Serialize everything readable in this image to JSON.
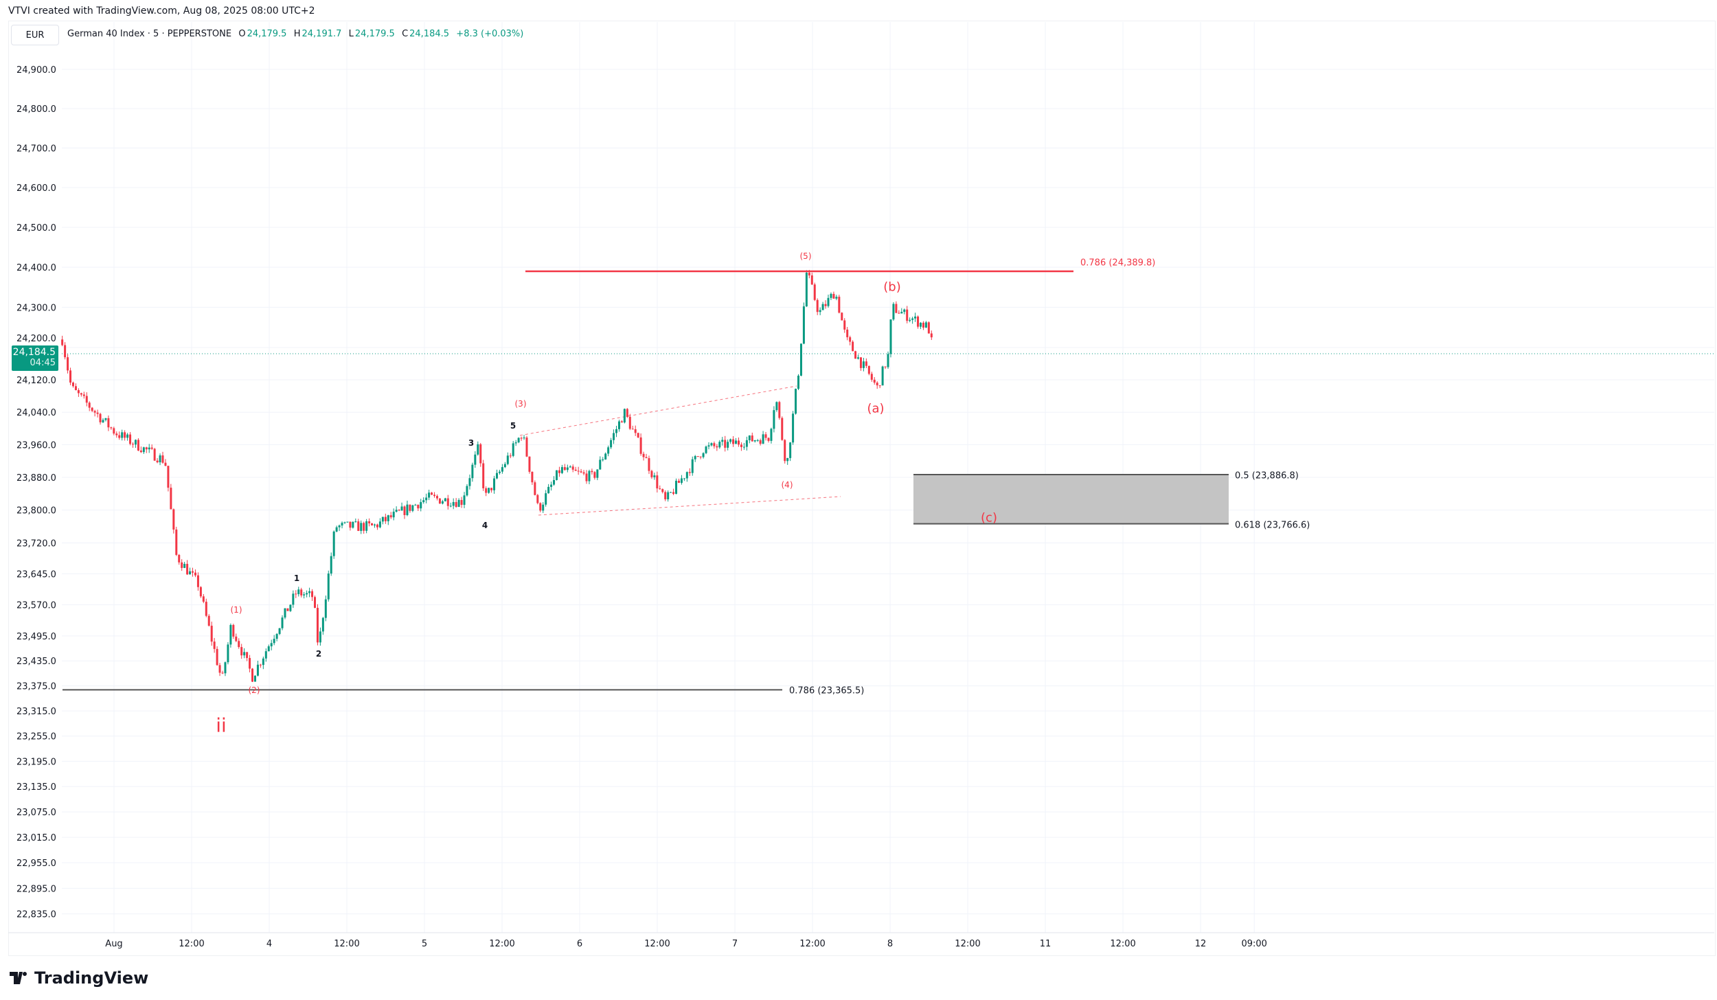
{
  "attribution": "VTVI created with TradingView.com, Aug 08, 2025 08:00 UTC+2",
  "currency": "EUR",
  "legend": {
    "symbol": "German 40 Index · 5 · PEPPERSTONE",
    "open_label": "O",
    "open": "24,179.5",
    "high_label": "H",
    "high": "24,191.7",
    "low_label": "L",
    "low": "24,179.5",
    "close_label": "C",
    "close": "24,184.5",
    "change": "+8.3 (+0.03%)"
  },
  "last_price": {
    "value": "24,184.5",
    "countdown": "04:45"
  },
  "logo_text": "TradingView",
  "colors": {
    "up": "#089981",
    "down": "#f23645",
    "fib_red": "#f23645",
    "fib_gray": "#787b86",
    "zone": "#c4c4c4"
  },
  "chart_data": {
    "type": "candlestick",
    "title": "German 40 Index · 5 · PEPPERSTONE",
    "scale": "log",
    "ylim": [
      22835,
      24900
    ],
    "y_ticks": [
      "24,900.0",
      "24,800.0",
      "24,700.0",
      "24,600.0",
      "24,500.0",
      "24,400.0",
      "24,300.0",
      "24,200.0",
      "24,120.0",
      "24,040.0",
      "23,960.0",
      "23,880.0",
      "23,800.0",
      "23,720.0",
      "23,645.0",
      "23,570.0",
      "23,495.0",
      "23,435.0",
      "23,375.0",
      "23,315.0",
      "23,255.0",
      "23,195.0",
      "23,135.0",
      "23,075.0",
      "23,015.0",
      "22,955.0",
      "22,895.0",
      "22,835.0"
    ],
    "x_ticks": [
      {
        "label": "Aug",
        "t": 0
      },
      {
        "label": "12:00",
        "t": 12
      },
      {
        "label": "4",
        "t": 24
      },
      {
        "label": "12:00",
        "t": 36
      },
      {
        "label": "5",
        "t": 48
      },
      {
        "label": "12:00",
        "t": 60
      },
      {
        "label": "6",
        "t": 72
      },
      {
        "label": "12:00",
        "t": 84
      },
      {
        "label": "7",
        "t": 96
      },
      {
        "label": "12:00",
        "t": 108
      },
      {
        "label": "8",
        "t": 120
      },
      {
        "label": "12:00",
        "t": 132
      },
      {
        "label": "11",
        "t": 144
      },
      {
        "label": "12:00",
        "t": 156
      },
      {
        "label": "12",
        "t": 168
      },
      {
        "label": "09:00",
        "t": 176.3
      }
    ],
    "x_units": "trading hours since Aug 1 00:00",
    "price_path": [
      [
        -8.0,
        24220
      ],
      [
        -6.6,
        24100
      ],
      [
        0.2,
        23990
      ],
      [
        7.9,
        23920
      ],
      [
        9.6,
        23690
      ],
      [
        13.0,
        23620
      ],
      [
        16.7,
        23385
      ],
      [
        18.1,
        23520
      ],
      [
        21.4,
        23398
      ],
      [
        28.2,
        23600
      ],
      [
        30.8,
        23590
      ],
      [
        31.6,
        23465
      ],
      [
        34.2,
        23760
      ],
      [
        40.1,
        23760
      ],
      [
        48.6,
        23830
      ],
      [
        53.7,
        23820
      ],
      [
        56.3,
        23950
      ],
      [
        57.4,
        23830
      ],
      [
        63.1,
        23990
      ],
      [
        65.6,
        23800
      ],
      [
        69.0,
        23900
      ],
      [
        74.1,
        23880
      ],
      [
        78.9,
        24040
      ],
      [
        85.2,
        23820
      ],
      [
        91.1,
        23950
      ],
      [
        101.3,
        23980
      ],
      [
        102.3,
        24080
      ],
      [
        104.0,
        23905
      ],
      [
        105.9,
        24150
      ],
      [
        107.1,
        24390
      ],
      [
        109.0,
        24285
      ],
      [
        111.5,
        24340
      ],
      [
        113.2,
        24220
      ],
      [
        118.0,
        24100
      ],
      [
        119.7,
        24180
      ],
      [
        120.3,
        24300
      ],
      [
        125.9,
        24250
      ],
      [
        126.8,
        24184.5
      ]
    ],
    "fib_levels": [
      {
        "label": "0.786 (24,389.8)",
        "price": 24389.8
      },
      {
        "label": "0.786 (23,365.5)",
        "price": 23365.5
      },
      {
        "label": "0.5 (23,886.8)",
        "price": 23886.8
      },
      {
        "label": "0.618 (23,766.6)",
        "price": 23766.6
      }
    ],
    "wave_labels": [
      "(1)",
      "(2)",
      "ii",
      "1",
      "2",
      "3",
      "4",
      "5",
      "(3)",
      "(4)",
      "(5)",
      "(a)",
      "(b)",
      "(c)"
    ]
  }
}
